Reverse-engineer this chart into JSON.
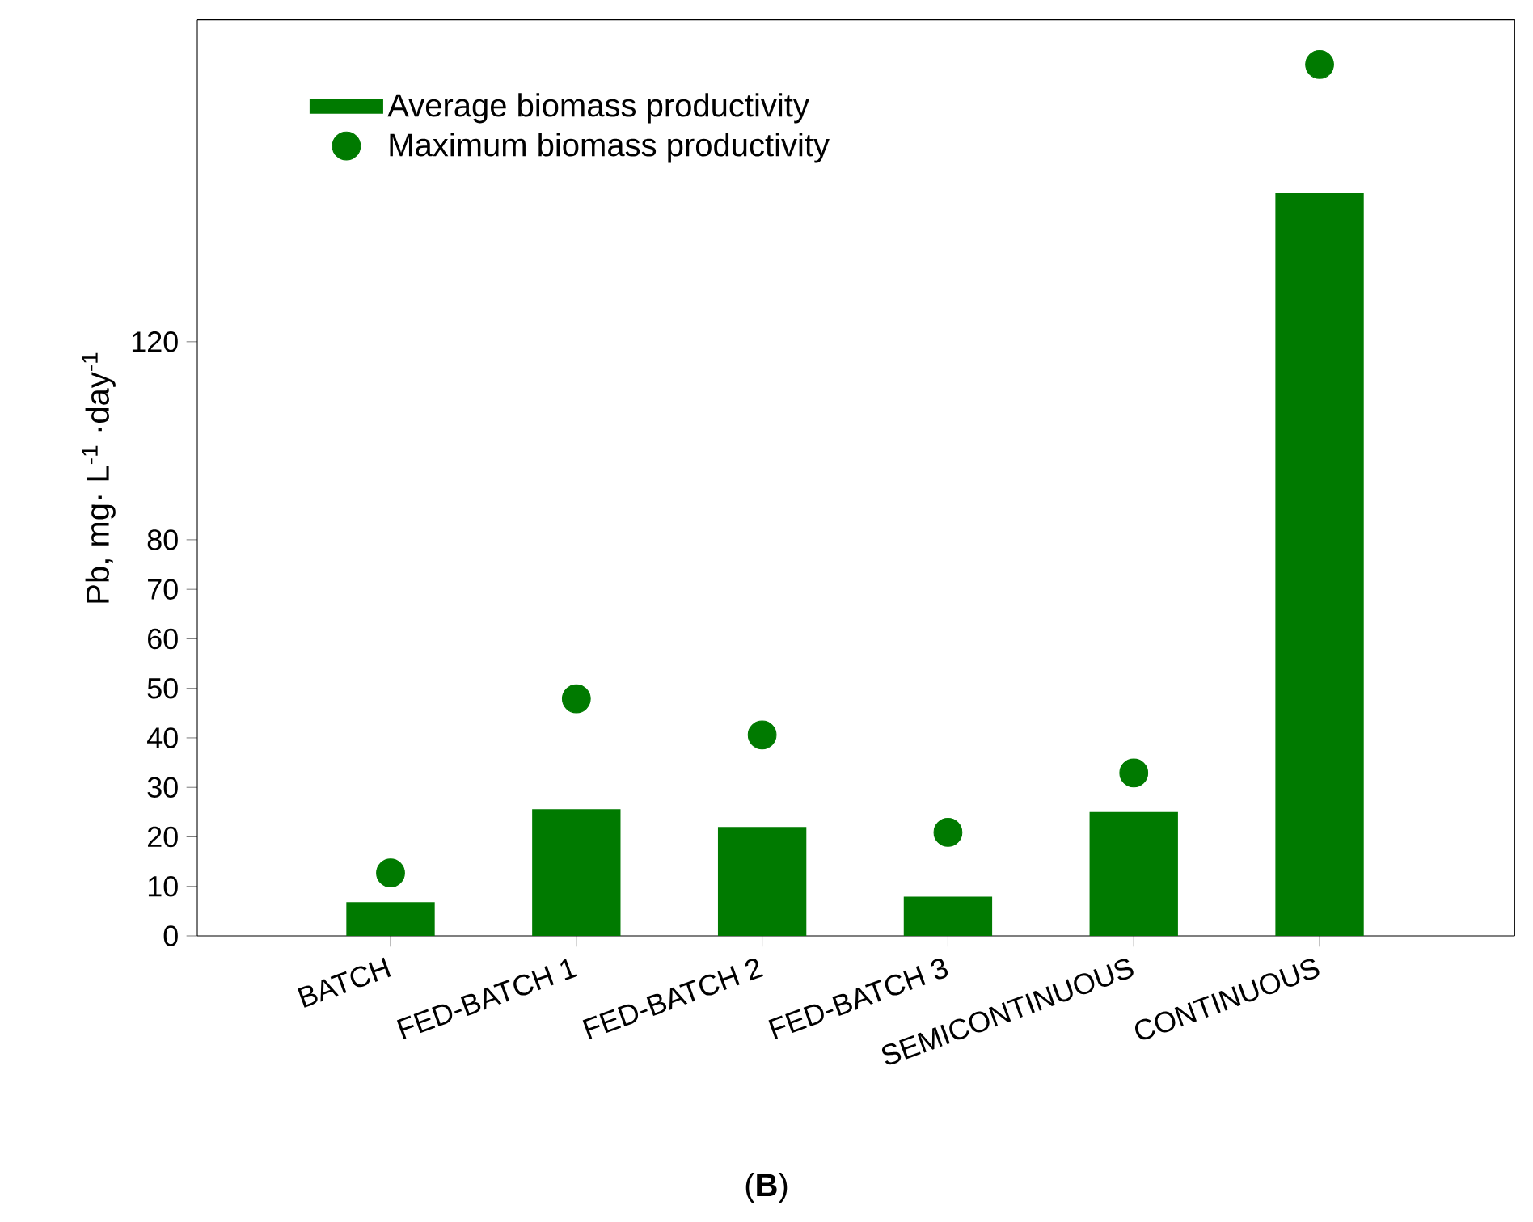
{
  "chart_data": {
    "type": "bar",
    "categories": [
      "BATCH",
      "FED-BATCH 1",
      "FED-BATCH 2",
      "FED-BATCH 3",
      "SEMICONTINUOUS",
      "CONTINUOUS"
    ],
    "ylabel": "Pb, mg· L$^{-1}$ ·day$^{-1}$",
    "series": [
      {
        "name": "Average biomass productivity",
        "color": "#007a00",
        "values": [
          6.8,
          25.6,
          22,
          7.9,
          25,
          150
        ]
      },
      {
        "name": "Maximum biomass productivity",
        "type": "scatter",
        "color": "#007a00",
        "values": [
          12.7,
          47.9,
          40.6,
          20.9,
          32.9,
          176
        ]
      }
    ],
    "ylim": [
      0,
      185
    ],
    "yticks": [
      0,
      10,
      20,
      30,
      40,
      50,
      60,
      70,
      80,
      120
    ],
    "legend": "top left",
    "grid": false,
    "annotations": [
      "(**B**)"
    ]
  }
}
